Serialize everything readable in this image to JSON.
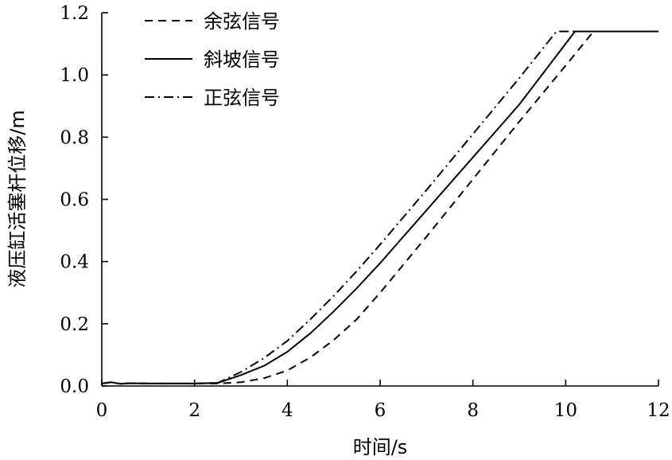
{
  "chart_data": {
    "type": "line",
    "xlabel": "时间/s",
    "ylabel": "液压缸活塞杆位移/m",
    "xlim": [
      0,
      12
    ],
    "ylim": [
      0,
      1.2
    ],
    "xticks": [
      0,
      2,
      4,
      6,
      8,
      10,
      12
    ],
    "yticks": [
      0,
      0.2,
      0.4,
      0.6,
      0.8,
      1.0,
      1.2
    ],
    "xtick_labels": [
      "0",
      "2",
      "4",
      "6",
      "8",
      "10",
      "12"
    ],
    "ytick_labels": [
      "0.0",
      "0.2",
      "0.4",
      "0.6",
      "0.8",
      "1.0",
      "1.2"
    ],
    "grid": false,
    "legend_position": "top-left",
    "series": [
      {
        "name": "余弦信号",
        "dash": "dashed",
        "x": [
          0,
          0.2,
          0.4,
          0.6,
          1,
          2,
          2.5,
          3.0,
          3.5,
          4.0,
          4.5,
          5.0,
          5.5,
          6.0,
          7.0,
          8.0,
          9.0,
          10.0,
          10.6
        ],
        "y": [
          0.008,
          0.012,
          0.007,
          0.009,
          0.008,
          0.008,
          0.008,
          0.012,
          0.025,
          0.05,
          0.092,
          0.148,
          0.215,
          0.3,
          0.48,
          0.665,
          0.85,
          1.03,
          1.14
        ]
      },
      {
        "name": "斜坡信号",
        "dash": "solid",
        "x": [
          0,
          0.2,
          0.4,
          0.6,
          1,
          2,
          2.5,
          3.0,
          3.5,
          4.0,
          4.5,
          5.0,
          5.5,
          6.0,
          7.0,
          8.0,
          9.0,
          10.2,
          12
        ],
        "y": [
          0.008,
          0.012,
          0.007,
          0.009,
          0.008,
          0.008,
          0.01,
          0.035,
          0.065,
          0.11,
          0.17,
          0.24,
          0.315,
          0.395,
          0.565,
          0.735,
          0.905,
          1.14,
          1.14
        ]
      },
      {
        "name": "正弦信号",
        "dash": "dashdot",
        "x": [
          0,
          0.2,
          0.4,
          0.6,
          1,
          2,
          2.5,
          3.0,
          3.5,
          4.0,
          4.5,
          5.0,
          5.5,
          6.0,
          7.0,
          8.0,
          9.0,
          9.8,
          10.2
        ],
        "y": [
          0.008,
          0.012,
          0.007,
          0.009,
          0.008,
          0.008,
          0.01,
          0.045,
          0.09,
          0.145,
          0.215,
          0.29,
          0.37,
          0.455,
          0.63,
          0.81,
          0.99,
          1.14,
          1.14
        ]
      }
    ]
  }
}
